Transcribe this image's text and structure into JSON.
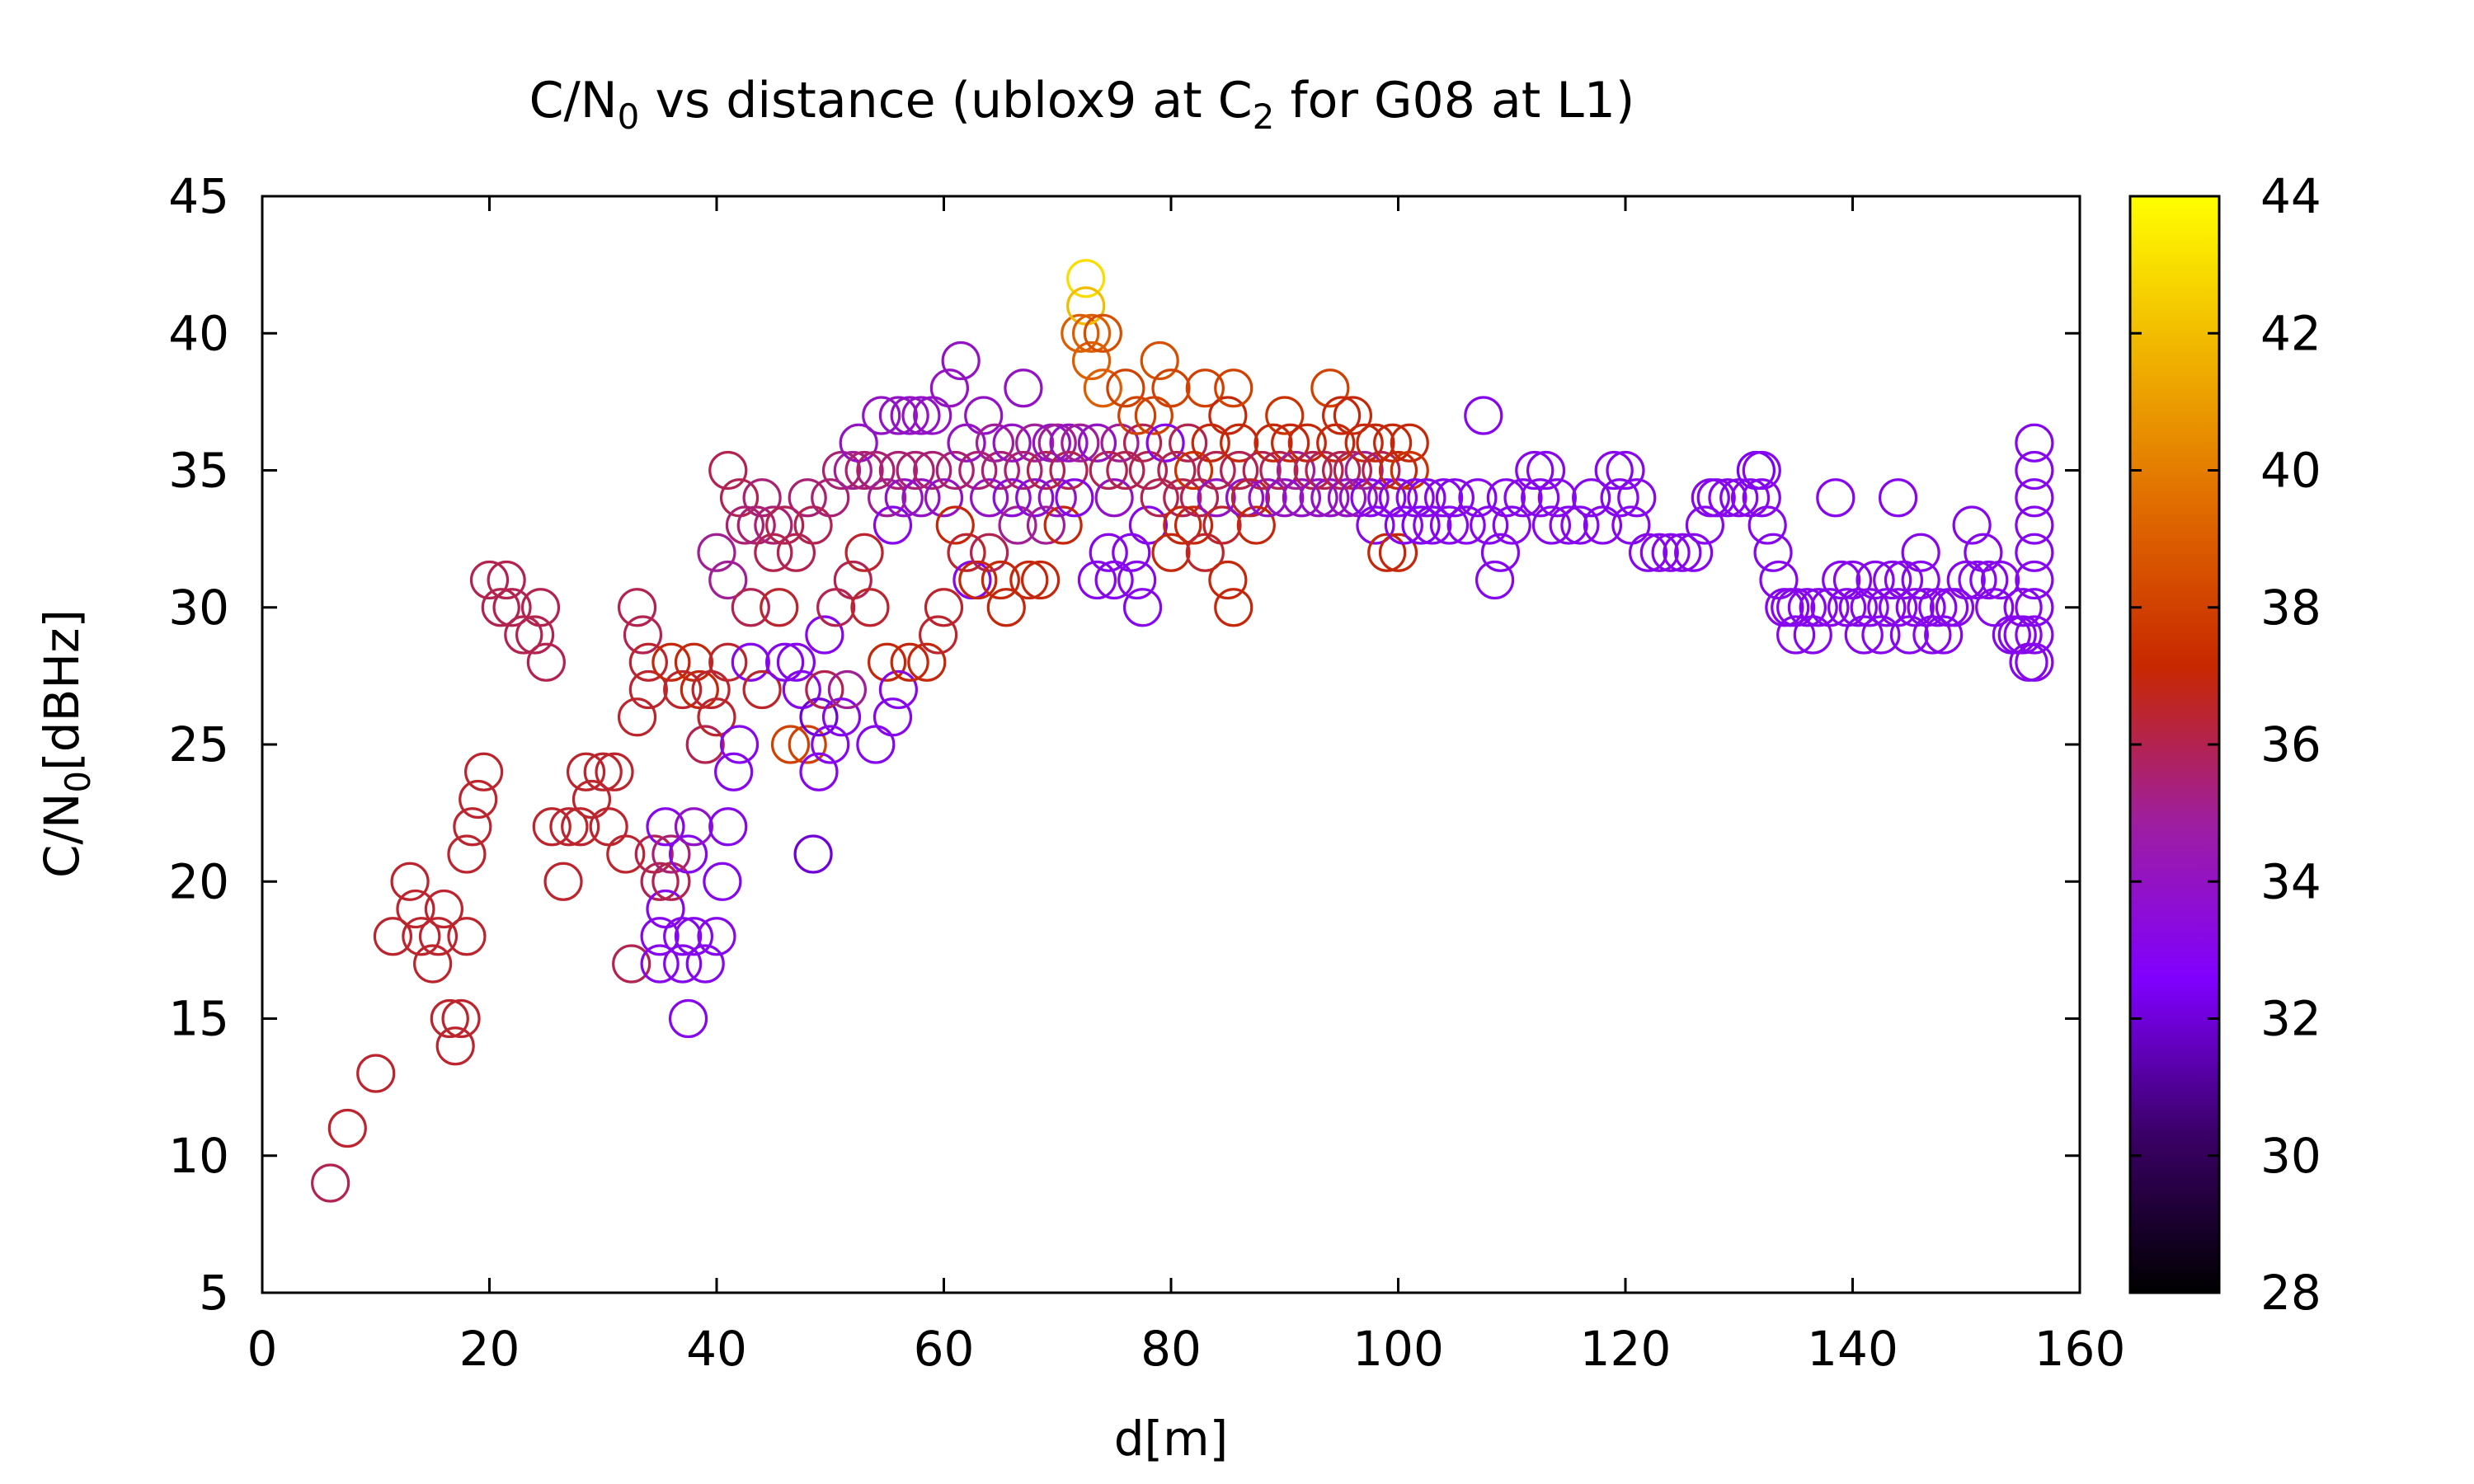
{
  "chart_data": {
    "type": "scatter",
    "title": {
      "prefix": "C/N",
      "prefix_sub": "0",
      "middle": " vs distance (ublox9 at C",
      "middle_sub": "2",
      "suffix": " for G08 at L1)"
    },
    "xlabel": "d[m]",
    "ylabel": {
      "main": "C/N",
      "sub": "0",
      "unit": "[dBHz]"
    },
    "xlim": [
      0,
      160
    ],
    "ylim": [
      5,
      45
    ],
    "xticks": [
      0,
      20,
      40,
      60,
      80,
      100,
      120,
      140,
      160
    ],
    "yticks": [
      5,
      10,
      15,
      20,
      25,
      30,
      35,
      40,
      45
    ],
    "colorbar": {
      "range": [
        28,
        44
      ],
      "ticks": [
        28,
        30,
        32,
        34,
        36,
        38,
        40,
        42,
        44
      ],
      "palette": [
        "#000000",
        "#3a0066",
        "#8000ff",
        "#9e1ea0",
        "#c82800",
        "#e06a00",
        "#f0b400",
        "#ffff00"
      ]
    },
    "marker": "open-circle",
    "points": [
      [
        6,
        9,
        36
      ],
      [
        7.5,
        11,
        36.5
      ],
      [
        10,
        13,
        36.5
      ],
      [
        11.5,
        18,
        36.5
      ],
      [
        13,
        20,
        36.5
      ],
      [
        13.5,
        19,
        36.5
      ],
      [
        14,
        18,
        36.5
      ],
      [
        15,
        17,
        36.5
      ],
      [
        15.5,
        18,
        36.5
      ],
      [
        16,
        19,
        36.5
      ],
      [
        16.5,
        15,
        36.5
      ],
      [
        17,
        14,
        36.5
      ],
      [
        17.5,
        15,
        36.5
      ],
      [
        18,
        18,
        36.5
      ],
      [
        18,
        21,
        36.5
      ],
      [
        18.5,
        22,
        36.5
      ],
      [
        19,
        23,
        36.5
      ],
      [
        19.5,
        24,
        36.5
      ],
      [
        20,
        31,
        36
      ],
      [
        21,
        30,
        36
      ],
      [
        21.5,
        31,
        36
      ],
      [
        22,
        30,
        36
      ],
      [
        23,
        29,
        36
      ],
      [
        24,
        29,
        36
      ],
      [
        24.5,
        30,
        36
      ],
      [
        25,
        28,
        36
      ],
      [
        25.5,
        22,
        36.5
      ],
      [
        26.5,
        20,
        36.5
      ],
      [
        27,
        22,
        36.5
      ],
      [
        28,
        22,
        36.5
      ],
      [
        28.5,
        24,
        36.5
      ],
      [
        29,
        23,
        36.5
      ],
      [
        30,
        24,
        36.5
      ],
      [
        30.5,
        22,
        36.5
      ],
      [
        31,
        24,
        36.5
      ],
      [
        32,
        21,
        36.5
      ],
      [
        32.5,
        17,
        36
      ],
      [
        33,
        26,
        36.5
      ],
      [
        33,
        30,
        36
      ],
      [
        33.5,
        29,
        36
      ],
      [
        34,
        28,
        36.5
      ],
      [
        34,
        27,
        36.5
      ],
      [
        34.5,
        21,
        36
      ],
      [
        35,
        20,
        36
      ],
      [
        35,
        18,
        33
      ],
      [
        35,
        17,
        33
      ],
      [
        35.5,
        19,
        33
      ],
      [
        35.5,
        22,
        33
      ],
      [
        36,
        20,
        36
      ],
      [
        36,
        21,
        35.5
      ],
      [
        36,
        28,
        37
      ],
      [
        37,
        17,
        33
      ],
      [
        37,
        18,
        33
      ],
      [
        37,
        27,
        36.5
      ],
      [
        37.5,
        15,
        33
      ],
      [
        37.5,
        21,
        33
      ],
      [
        38,
        18,
        33
      ],
      [
        38,
        22,
        34
      ],
      [
        38,
        28,
        37
      ],
      [
        38.5,
        27,
        37
      ],
      [
        39,
        25,
        36
      ],
      [
        39,
        17,
        33
      ],
      [
        39.5,
        27,
        36.5
      ],
      [
        40,
        18,
        33
      ],
      [
        40,
        32,
        35
      ],
      [
        40,
        26,
        36.5
      ],
      [
        40.5,
        20,
        33
      ],
      [
        41,
        22,
        33
      ],
      [
        41,
        35,
        36
      ],
      [
        41,
        31,
        35
      ],
      [
        41,
        28,
        36.5
      ],
      [
        41.5,
        24,
        33
      ],
      [
        42,
        25,
        33
      ],
      [
        42,
        34,
        36
      ],
      [
        42.5,
        33,
        35.5
      ],
      [
        43,
        30,
        36
      ],
      [
        43,
        28,
        33
      ],
      [
        43.5,
        33,
        35.5
      ],
      [
        44,
        34,
        35.5
      ],
      [
        44,
        27,
        36.5
      ],
      [
        45,
        32,
        36
      ],
      [
        45,
        33,
        35.5
      ],
      [
        45.5,
        30,
        36.5
      ],
      [
        46,
        28,
        33
      ],
      [
        46,
        33,
        36
      ],
      [
        46.5,
        25,
        38
      ],
      [
        47,
        28,
        33
      ],
      [
        47,
        32,
        36
      ],
      [
        47.5,
        27,
        33
      ],
      [
        48,
        34,
        35.5
      ],
      [
        48,
        25,
        38
      ],
      [
        48.5,
        33,
        36
      ],
      [
        48.5,
        21,
        32
      ],
      [
        49,
        26,
        32
      ],
      [
        49,
        24,
        33
      ],
      [
        49.5,
        29,
        33
      ],
      [
        49.5,
        27,
        36
      ],
      [
        50,
        34,
        35.5
      ],
      [
        50,
        25,
        33
      ],
      [
        50.5,
        30,
        36
      ],
      [
        51,
        35,
        35.5
      ],
      [
        51,
        26,
        33
      ],
      [
        51.5,
        27,
        35
      ],
      [
        52,
        35,
        35
      ],
      [
        52,
        31,
        36
      ],
      [
        52.5,
        36,
        34
      ],
      [
        53,
        35,
        35.5
      ],
      [
        53,
        32,
        36.5
      ],
      [
        53.5,
        30,
        36.5
      ],
      [
        54,
        35,
        35.5
      ],
      [
        54,
        25,
        33
      ],
      [
        54.5,
        37,
        34
      ],
      [
        55,
        34,
        35
      ],
      [
        55,
        28,
        37
      ],
      [
        55.5,
        26,
        33
      ],
      [
        55.5,
        33,
        33
      ],
      [
        56,
        37,
        34
      ],
      [
        56,
        35,
        35.5
      ],
      [
        56,
        27,
        33
      ],
      [
        56.5,
        34,
        34
      ],
      [
        57,
        28,
        37
      ],
      [
        57,
        37,
        34
      ],
      [
        57.5,
        35,
        35.5
      ],
      [
        58,
        34,
        34
      ],
      [
        58,
        37,
        34
      ],
      [
        58.5,
        28,
        37
      ],
      [
        59,
        35,
        35.5
      ],
      [
        59,
        37,
        34
      ],
      [
        59.5,
        29,
        36.5
      ],
      [
        60,
        30,
        36.5
      ],
      [
        60,
        34,
        34
      ],
      [
        60.5,
        38,
        34
      ],
      [
        61,
        35,
        35.5
      ],
      [
        61,
        33,
        37
      ],
      [
        61.5,
        39,
        34
      ],
      [
        62,
        32,
        36.5
      ],
      [
        62,
        36,
        34
      ],
      [
        62.5,
        31,
        33
      ],
      [
        63,
        35,
        35.5
      ],
      [
        63,
        31,
        37
      ],
      [
        63.5,
        37,
        34
      ],
      [
        64,
        34,
        34
      ],
      [
        64,
        32,
        36
      ],
      [
        64.5,
        36,
        35
      ],
      [
        65,
        35,
        35.5
      ],
      [
        65,
        31,
        37
      ],
      [
        65.5,
        30,
        37
      ],
      [
        66,
        34,
        33.5
      ],
      [
        66,
        36,
        34
      ],
      [
        66.5,
        33,
        35
      ],
      [
        67,
        38,
        34
      ],
      [
        67,
        35,
        35.5
      ],
      [
        67.5,
        31,
        37
      ],
      [
        68,
        34,
        33.5
      ],
      [
        68,
        36,
        35
      ],
      [
        68.5,
        31,
        37
      ],
      [
        69,
        35,
        36
      ],
      [
        69,
        33,
        35
      ],
      [
        69.5,
        36,
        34
      ],
      [
        70,
        34,
        34
      ],
      [
        70,
        36,
        35
      ],
      [
        70.5,
        33,
        37
      ],
      [
        71,
        35,
        36
      ],
      [
        71,
        36,
        34
      ],
      [
        71.5,
        34,
        33
      ],
      [
        72,
        36,
        35
      ],
      [
        72,
        40,
        39
      ],
      [
        72.5,
        42,
        43
      ],
      [
        72.5,
        41,
        42
      ],
      [
        73,
        40,
        39
      ],
      [
        73,
        39,
        39
      ],
      [
        73.5,
        36,
        34
      ],
      [
        73.5,
        31,
        33
      ],
      [
        74,
        38,
        39
      ],
      [
        74,
        40,
        38.5
      ],
      [
        74.5,
        35,
        36
      ],
      [
        74.5,
        32,
        33
      ],
      [
        75,
        34,
        34
      ],
      [
        75,
        31,
        33
      ],
      [
        75.5,
        36,
        35
      ],
      [
        76,
        38,
        38
      ],
      [
        76,
        35,
        36
      ],
      [
        76.5,
        32,
        33
      ],
      [
        77,
        37,
        38
      ],
      [
        77,
        31,
        33
      ],
      [
        77.5,
        36,
        36
      ],
      [
        77.5,
        30,
        33
      ],
      [
        78,
        33,
        33
      ],
      [
        78,
        35,
        36
      ],
      [
        78.5,
        37,
        38
      ],
      [
        79,
        39,
        38.5
      ],
      [
        79,
        34,
        36
      ],
      [
        79.5,
        36,
        33
      ],
      [
        80,
        38,
        38
      ],
      [
        80,
        32,
        37
      ],
      [
        80.5,
        35,
        36
      ],
      [
        81,
        34,
        36
      ],
      [
        81,
        33,
        37
      ],
      [
        81.5,
        36,
        36
      ],
      [
        82,
        35,
        37.5
      ],
      [
        82,
        33,
        37
      ],
      [
        82.5,
        34,
        36
      ],
      [
        83,
        38,
        38
      ],
      [
        83,
        32,
        36.5
      ],
      [
        83.5,
        36,
        37
      ],
      [
        84,
        35,
        36
      ],
      [
        84,
        34,
        34
      ],
      [
        84.5,
        33,
        36.5
      ],
      [
        85,
        37,
        37
      ],
      [
        85,
        31,
        37
      ],
      [
        85.5,
        38,
        38
      ],
      [
        85.5,
        30,
        37
      ],
      [
        86,
        35,
        36
      ],
      [
        86,
        36,
        37
      ],
      [
        86.5,
        34,
        34
      ],
      [
        87,
        34,
        36.5
      ],
      [
        87.5,
        33,
        37
      ],
      [
        88,
        35,
        36
      ],
      [
        88.5,
        34,
        34
      ],
      [
        89,
        36,
        37
      ],
      [
        89.5,
        35,
        36
      ],
      [
        90,
        37,
        37.5
      ],
      [
        90,
        34,
        34
      ],
      [
        90.5,
        36,
        37
      ],
      [
        91,
        35,
        35
      ],
      [
        91.5,
        34,
        34
      ],
      [
        92,
        36,
        37
      ],
      [
        92.5,
        35,
        36
      ],
      [
        93,
        34,
        34
      ],
      [
        93.5,
        35,
        36
      ],
      [
        94,
        38,
        38
      ],
      [
        94,
        34,
        34
      ],
      [
        94.5,
        36,
        37
      ],
      [
        95,
        37,
        37
      ],
      [
        95,
        35,
        36
      ],
      [
        95.5,
        34,
        34
      ],
      [
        96,
        37,
        37
      ],
      [
        96,
        35,
        36
      ],
      [
        96.5,
        34,
        34
      ],
      [
        97,
        36,
        37
      ],
      [
        97,
        35,
        35
      ],
      [
        97.5,
        34,
        33
      ],
      [
        98,
        36,
        37
      ],
      [
        98,
        33,
        33
      ],
      [
        98.5,
        35,
        36
      ],
      [
        99,
        34,
        33
      ],
      [
        99,
        32,
        37
      ],
      [
        99.5,
        36,
        37
      ],
      [
        100,
        32,
        37
      ],
      [
        100,
        35,
        37
      ],
      [
        100,
        34,
        33
      ],
      [
        100.5,
        33,
        33
      ],
      [
        101,
        36,
        37
      ],
      [
        101,
        35,
        37.5
      ],
      [
        101.5,
        34,
        33
      ],
      [
        102,
        33,
        32.5
      ],
      [
        102.5,
        34,
        33
      ],
      [
        103,
        33,
        33
      ],
      [
        104,
        34,
        33
      ],
      [
        104.5,
        33,
        33
      ],
      [
        105,
        34,
        33
      ],
      [
        106,
        33,
        33
      ],
      [
        107,
        34,
        33
      ],
      [
        107.5,
        37,
        33
      ],
      [
        108,
        33,
        33
      ],
      [
        108.5,
        31,
        33
      ],
      [
        109,
        32,
        33
      ],
      [
        109.5,
        34,
        33
      ],
      [
        110,
        33,
        33
      ],
      [
        111,
        34,
        33
      ],
      [
        112,
        35,
        33
      ],
      [
        112.5,
        34,
        33
      ],
      [
        113,
        35,
        33
      ],
      [
        113.5,
        33,
        33
      ],
      [
        114,
        34,
        33
      ],
      [
        115,
        33,
        33
      ],
      [
        116,
        33,
        33
      ],
      [
        117,
        34,
        33
      ],
      [
        118,
        33,
        33
      ],
      [
        119,
        35,
        33
      ],
      [
        119.5,
        34,
        33
      ],
      [
        120,
        35,
        33
      ],
      [
        120.5,
        33,
        33
      ],
      [
        121,
        34,
        33
      ],
      [
        122,
        32,
        33
      ],
      [
        123,
        32,
        33
      ],
      [
        124,
        32,
        33
      ],
      [
        125,
        32,
        33
      ],
      [
        126,
        32,
        33
      ],
      [
        127,
        33,
        33
      ],
      [
        127.5,
        34,
        33
      ],
      [
        128,
        34,
        33
      ],
      [
        129,
        34,
        33
      ],
      [
        130,
        34,
        33
      ],
      [
        131,
        34,
        33
      ],
      [
        131.5,
        35,
        32.5
      ],
      [
        132,
        35,
        33
      ],
      [
        132,
        34,
        33
      ],
      [
        132.5,
        33,
        33
      ],
      [
        133,
        32,
        33
      ],
      [
        133.5,
        31,
        33
      ],
      [
        134,
        30,
        33
      ],
      [
        134.5,
        30,
        33
      ],
      [
        135,
        29,
        33
      ],
      [
        135,
        30,
        33
      ],
      [
        136,
        30,
        33
      ],
      [
        136.5,
        29,
        33
      ],
      [
        137,
        30,
        33
      ],
      [
        138,
        30,
        33
      ],
      [
        138.5,
        34,
        33
      ],
      [
        139,
        31,
        33
      ],
      [
        139.5,
        30,
        33
      ],
      [
        140,
        31,
        33
      ],
      [
        140.5,
        30,
        33
      ],
      [
        141,
        29,
        33
      ],
      [
        141.5,
        30,
        33
      ],
      [
        142,
        31,
        33
      ],
      [
        142.5,
        29,
        33
      ],
      [
        143,
        30,
        33
      ],
      [
        143.5,
        31,
        33
      ],
      [
        144,
        34,
        33
      ],
      [
        144,
        30,
        33
      ],
      [
        144.5,
        31,
        33
      ],
      [
        145,
        29,
        33
      ],
      [
        145.5,
        30,
        33
      ],
      [
        146,
        31,
        33
      ],
      [
        146,
        32,
        33
      ],
      [
        146.5,
        30,
        33
      ],
      [
        147,
        29,
        33
      ],
      [
        147.5,
        30,
        33
      ],
      [
        148,
        29,
        33
      ],
      [
        148.5,
        30,
        33
      ],
      [
        149,
        30,
        33
      ],
      [
        150,
        31,
        33
      ],
      [
        150.5,
        33,
        33
      ],
      [
        151,
        31,
        33
      ],
      [
        151.5,
        32,
        33
      ],
      [
        152,
        31,
        33
      ],
      [
        152.5,
        30,
        33
      ],
      [
        153,
        31,
        33
      ],
      [
        154,
        29,
        33
      ],
      [
        154.5,
        29,
        33
      ],
      [
        155,
        30,
        33
      ],
      [
        155,
        29,
        33
      ],
      [
        155.5,
        28,
        33
      ],
      [
        156,
        36,
        33
      ],
      [
        156,
        35,
        33
      ],
      [
        156,
        34,
        33
      ],
      [
        156,
        33,
        33
      ],
      [
        156,
        32,
        33
      ],
      [
        156,
        31,
        33
      ],
      [
        156,
        30,
        33
      ],
      [
        156,
        29,
        33
      ],
      [
        156,
        28,
        33
      ]
    ]
  }
}
